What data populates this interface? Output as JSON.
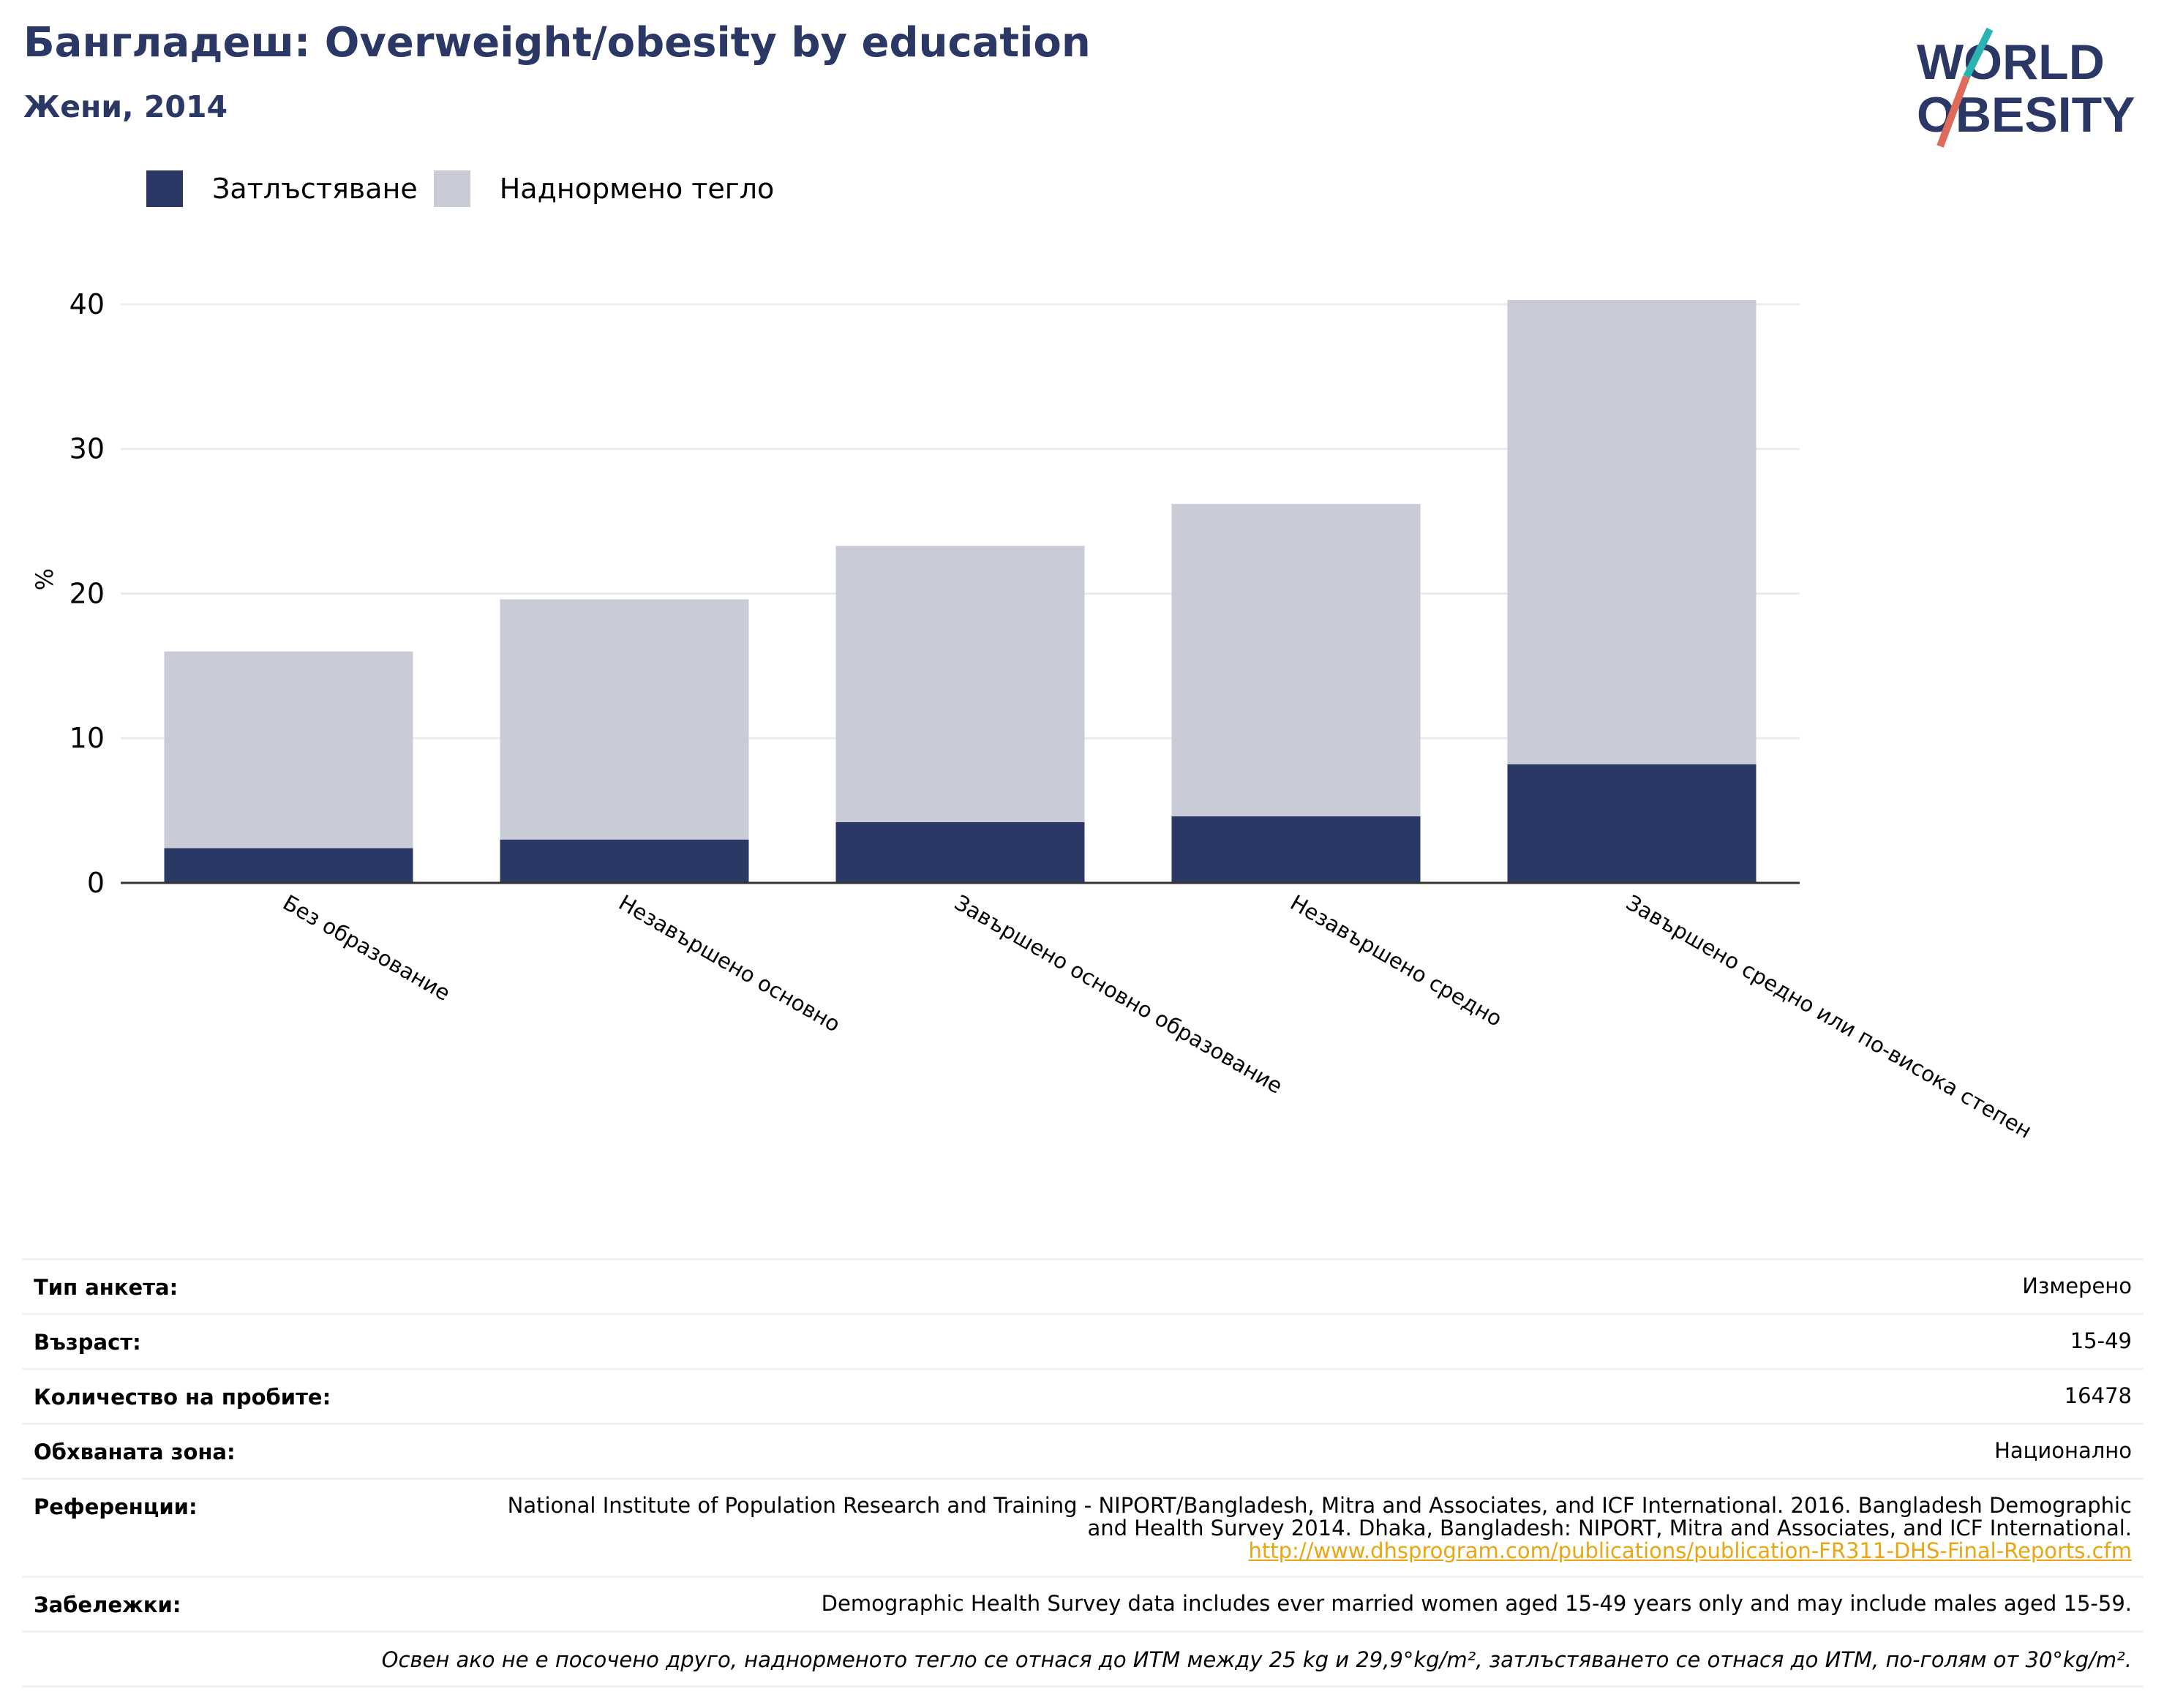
{
  "header": {
    "title": "Бангладеш: Overweight/obesity by education",
    "subtitle": "Жени, 2014"
  },
  "logo": {
    "line1": "WORLD",
    "line2": "OBESITY"
  },
  "colors": {
    "obesity": "#2b3764",
    "overweight": "#c9cbd7",
    "accent_teal": "#2bb3b1",
    "accent_red": "#e06a5a"
  },
  "chart_data": {
    "type": "bar",
    "stacked": true,
    "categories": [
      "Без образование",
      "Незавършено основно",
      "Завършено основно образование",
      "Незавършено средно",
      "Завършено средно или по-висока степен"
    ],
    "series": [
      {
        "name": "Затлъстяване",
        "values": [
          2.4,
          3.0,
          4.2,
          4.6,
          8.2
        ]
      },
      {
        "name": "Наднормено тегло",
        "values": [
          13.6,
          16.6,
          19.1,
          21.6,
          32.1
        ]
      }
    ],
    "ylabel": "%",
    "yticks": [
      0,
      10,
      20,
      30,
      40
    ],
    "ylim": [
      0,
      40.2
    ],
    "grid": true,
    "legend": "top-left"
  },
  "info": {
    "rows": [
      {
        "label": "Тип анкета:",
        "value": "Измерено"
      },
      {
        "label": "Възраст:",
        "value": "15-49"
      },
      {
        "label": "Количество на пробите:",
        "value": "16478"
      },
      {
        "label": "Обхваната зона:",
        "value": "Национално"
      }
    ],
    "references_label": "Референции:",
    "references_text": "National Institute of Population Research and Training - NIPORT/Bangladesh, Mitra and Associates, and ICF International. 2016. Bangladesh Demographic and Health Survey 2014. Dhaka, Bangladesh: NIPORT, Mitra and Associates, and ICF International.",
    "references_link": "http://www.dhsprogram.com/publications/publication-FR311-DHS-Final-Reports.cfm",
    "notes_label": "Забележки:",
    "notes_value": "Demographic Health Survey data includes ever married women aged 15-49 years only and may include males aged 15-59.",
    "footnote": "Освен ако не е посочено друго, наднорменото тегло се отнася до ИТМ между 25 kg и 29,9°kg/m², затлъстяването се отнася до ИТМ, по-голям от 30°kg/m²."
  }
}
